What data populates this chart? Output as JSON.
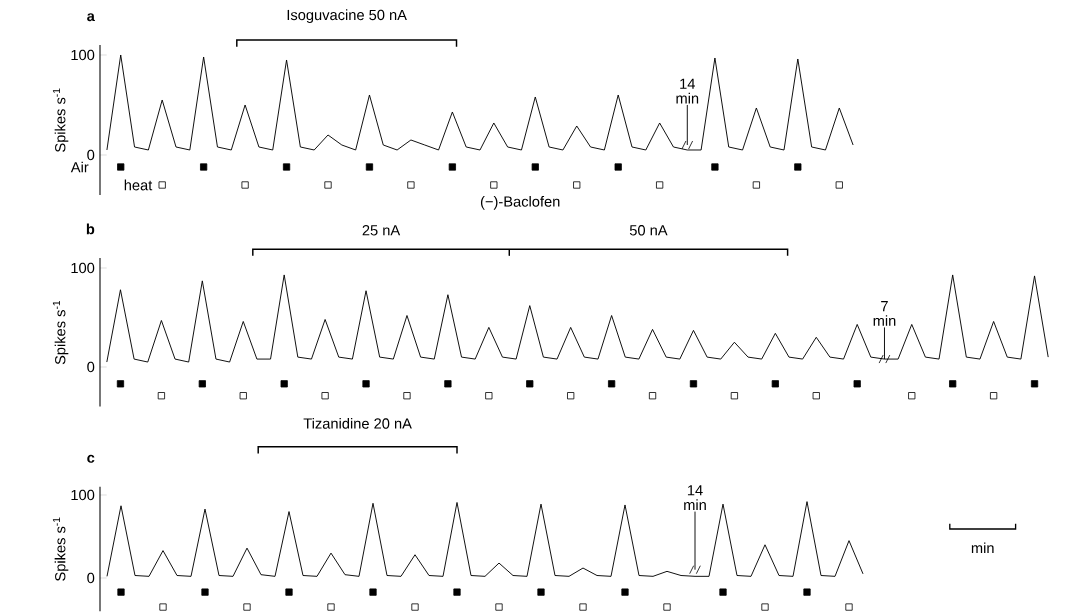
{
  "chart_data": [
    {
      "type": "line",
      "title": "a",
      "ylabel": "Spikes s$^{-1}$",
      "ylim": [
        -40,
        110
      ],
      "yticks": [
        0,
        100
      ],
      "tick_labels": "y",
      "categories": [
        null,
        null,
        null,
        null,
        null,
        null,
        null,
        null,
        null,
        null,
        null,
        null,
        null,
        null,
        null,
        null,
        null,
        null,
        null,
        null,
        null,
        null,
        null,
        null,
        null,
        null,
        null,
        null,
        null,
        null,
        null,
        null,
        null,
        null,
        null,
        null,
        null,
        null,
        null,
        null,
        null,
        null,
        null,
        null,
        null,
        null,
        null,
        null,
        null,
        null,
        null,
        null,
        null,
        null,
        null
      ],
      "series": [
        {
          "color": "#000000",
          "values": [
            5,
            100,
            8,
            5,
            55,
            8,
            5,
            98,
            8,
            5,
            50,
            8,
            5,
            95,
            8,
            5,
            20,
            10,
            5,
            60,
            10,
            5,
            15,
            10,
            5,
            43,
            8,
            5,
            32,
            8,
            5,
            58,
            8,
            5,
            29,
            8,
            5,
            60,
            8,
            5,
            32,
            8,
            5,
            5,
            97,
            8,
            5,
            47,
            8,
            5,
            96,
            8,
            5,
            47,
            10
          ]
        },
        {
          "type": "scatter",
          "name": "Air",
          "marker": "square",
          "color": "#000000",
          "values": [
            null,
            -12,
            null,
            null,
            null,
            null,
            null,
            -12,
            null,
            null,
            null,
            null,
            null,
            -12,
            null,
            null,
            null,
            null,
            null,
            -12,
            null,
            null,
            null,
            null,
            null,
            -12,
            null,
            null,
            null,
            null,
            null,
            -12,
            null,
            null,
            null,
            null,
            null,
            -12,
            null,
            null,
            null,
            null,
            null,
            null,
            -12,
            null,
            null,
            null,
            null,
            null,
            -12,
            null,
            null,
            null,
            null
          ]
        },
        {
          "type": "scatter",
          "name": "heat",
          "marker": "square",
          "color": "#ffffff",
          "values": [
            null,
            null,
            null,
            null,
            -30,
            null,
            null,
            null,
            null,
            null,
            -30,
            null,
            null,
            null,
            null,
            null,
            -30,
            null,
            null,
            null,
            null,
            null,
            -30,
            null,
            null,
            null,
            null,
            null,
            -30,
            null,
            null,
            null,
            null,
            null,
            -30,
            null,
            null,
            null,
            null,
            null,
            -30,
            null,
            null,
            null,
            null,
            null,
            null,
            -30,
            null,
            null,
            null,
            null,
            null,
            -30,
            null
          ]
        }
      ],
      "annotations": [
        "Isoguvacine 50 nA",
        "14 min"
      ]
    },
    {
      "type": "line",
      "title": "b",
      "ylabel": "Spikes s$^{-1}$",
      "ylim": [
        -40,
        110
      ],
      "yticks": [
        0,
        100
      ],
      "tick_labels": "y",
      "categories": [
        null,
        null,
        null,
        null,
        null,
        null,
        null,
        null,
        null,
        null,
        null,
        null,
        null,
        null,
        null,
        null,
        null,
        null,
        null,
        null,
        null,
        null,
        null,
        null,
        null,
        null,
        null,
        null,
        null,
        null,
        null,
        null,
        null,
        null,
        null,
        null,
        null,
        null,
        null,
        null,
        null,
        null,
        null,
        null,
        null,
        null,
        null,
        null,
        null,
        null,
        null,
        null,
        null,
        null,
        null,
        null,
        null,
        null,
        null,
        null,
        null,
        null,
        null,
        null,
        null,
        null,
        null,
        null,
        null,
        null
      ],
      "series": [
        {
          "color": "#000000",
          "values": [
            5,
            78,
            8,
            5,
            47,
            8,
            5,
            87,
            8,
            5,
            46,
            8,
            8,
            93,
            10,
            8,
            48,
            10,
            8,
            77,
            10,
            8,
            52,
            10,
            8,
            73,
            10,
            8,
            40,
            10,
            8,
            62,
            10,
            8,
            40,
            10,
            8,
            52,
            10,
            8,
            38,
            10,
            8,
            37,
            10,
            8,
            25,
            10,
            8,
            34,
            10,
            8,
            30,
            10,
            8,
            43,
            10,
            8,
            8,
            43,
            10,
            8,
            93,
            10,
            8,
            46,
            10,
            8,
            92,
            10
          ]
        },
        {
          "type": "scatter",
          "marker": "square",
          "color": "#000000",
          "values": [
            null,
            -17,
            null,
            null,
            null,
            null,
            null,
            -17,
            null,
            null,
            null,
            null,
            null,
            -17,
            null,
            null,
            null,
            null,
            null,
            -17,
            null,
            null,
            null,
            null,
            null,
            -17,
            null,
            null,
            null,
            null,
            null,
            -17,
            null,
            null,
            null,
            null,
            null,
            -17,
            null,
            null,
            null,
            null,
            null,
            -17,
            null,
            null,
            null,
            null,
            null,
            -17,
            null,
            null,
            null,
            null,
            null,
            -17,
            null,
            null,
            null,
            null,
            null,
            null,
            -17,
            null,
            null,
            null,
            null,
            null,
            -17,
            null
          ]
        },
        {
          "type": "scatter",
          "marker": "square",
          "color": "#ffffff",
          "values": [
            null,
            null,
            null,
            null,
            -29,
            null,
            null,
            null,
            null,
            null,
            -29,
            null,
            null,
            null,
            null,
            null,
            -29,
            null,
            null,
            null,
            null,
            null,
            -29,
            null,
            null,
            null,
            null,
            null,
            -29,
            null,
            null,
            null,
            null,
            null,
            -29,
            null,
            null,
            null,
            null,
            null,
            -29,
            null,
            null,
            null,
            null,
            null,
            -29,
            null,
            null,
            null,
            null,
            null,
            -29,
            null,
            null,
            null,
            null,
            null,
            null,
            -29,
            null,
            null,
            null,
            null,
            null,
            -29,
            null,
            null,
            null,
            null
          ]
        }
      ],
      "annotations": [
        "(−)-Baclofen",
        "25 nA",
        "50 nA",
        "7 min"
      ]
    },
    {
      "type": "line",
      "title": "c",
      "ylabel": "Spikes s$^{-1}$",
      "ylim": [
        -40,
        110
      ],
      "yticks": [
        0,
        100
      ],
      "tick_labels": "y",
      "categories": [
        null,
        null,
        null,
        null,
        null,
        null,
        null,
        null,
        null,
        null,
        null,
        null,
        null,
        null,
        null,
        null,
        null,
        null,
        null,
        null,
        null,
        null,
        null,
        null,
        null,
        null,
        null,
        null,
        null,
        null,
        null,
        null,
        null,
        null,
        null,
        null,
        null,
        null,
        null,
        null,
        null,
        null,
        null,
        null,
        null,
        null,
        null,
        null,
        null,
        null,
        null,
        null,
        null,
        null,
        null
      ],
      "series": [
        {
          "color": "#000000",
          "values": [
            2,
            87,
            3,
            2,
            33,
            3,
            2,
            83,
            3,
            2,
            36,
            4,
            2,
            80,
            3,
            2,
            30,
            4,
            2,
            90,
            3,
            2,
            28,
            3,
            2,
            91,
            3,
            2,
            18,
            3,
            2,
            89,
            3,
            2,
            12,
            3,
            2,
            88,
            3,
            2,
            8,
            3,
            2,
            2,
            89,
            3,
            2,
            40,
            3,
            2,
            92,
            3,
            2,
            45,
            5
          ]
        },
        {
          "type": "scatter",
          "marker": "square",
          "color": "#000000",
          "values": [
            null,
            -17,
            null,
            null,
            null,
            null,
            null,
            -17,
            null,
            null,
            null,
            null,
            null,
            -17,
            null,
            null,
            null,
            null,
            null,
            -17,
            null,
            null,
            null,
            null,
            null,
            -17,
            null,
            null,
            null,
            null,
            null,
            -17,
            null,
            null,
            null,
            null,
            null,
            -17,
            null,
            null,
            null,
            null,
            null,
            null,
            -17,
            null,
            null,
            null,
            null,
            null,
            -17,
            null,
            null,
            null,
            null
          ]
        },
        {
          "type": "scatter",
          "marker": "square",
          "color": "#ffffff",
          "values": [
            null,
            null,
            null,
            null,
            -35,
            null,
            null,
            null,
            null,
            null,
            -35,
            null,
            null,
            null,
            null,
            null,
            -35,
            null,
            null,
            null,
            null,
            null,
            -35,
            null,
            null,
            null,
            null,
            null,
            -35,
            null,
            null,
            null,
            null,
            null,
            -35,
            null,
            null,
            null,
            null,
            null,
            -35,
            null,
            null,
            null,
            null,
            null,
            null,
            -35,
            null,
            null,
            null,
            null,
            null,
            -35,
            null
          ]
        }
      ],
      "annotations": [
        "Tizanidine 20 nA",
        "14 min",
        "min"
      ]
    }
  ]
}
